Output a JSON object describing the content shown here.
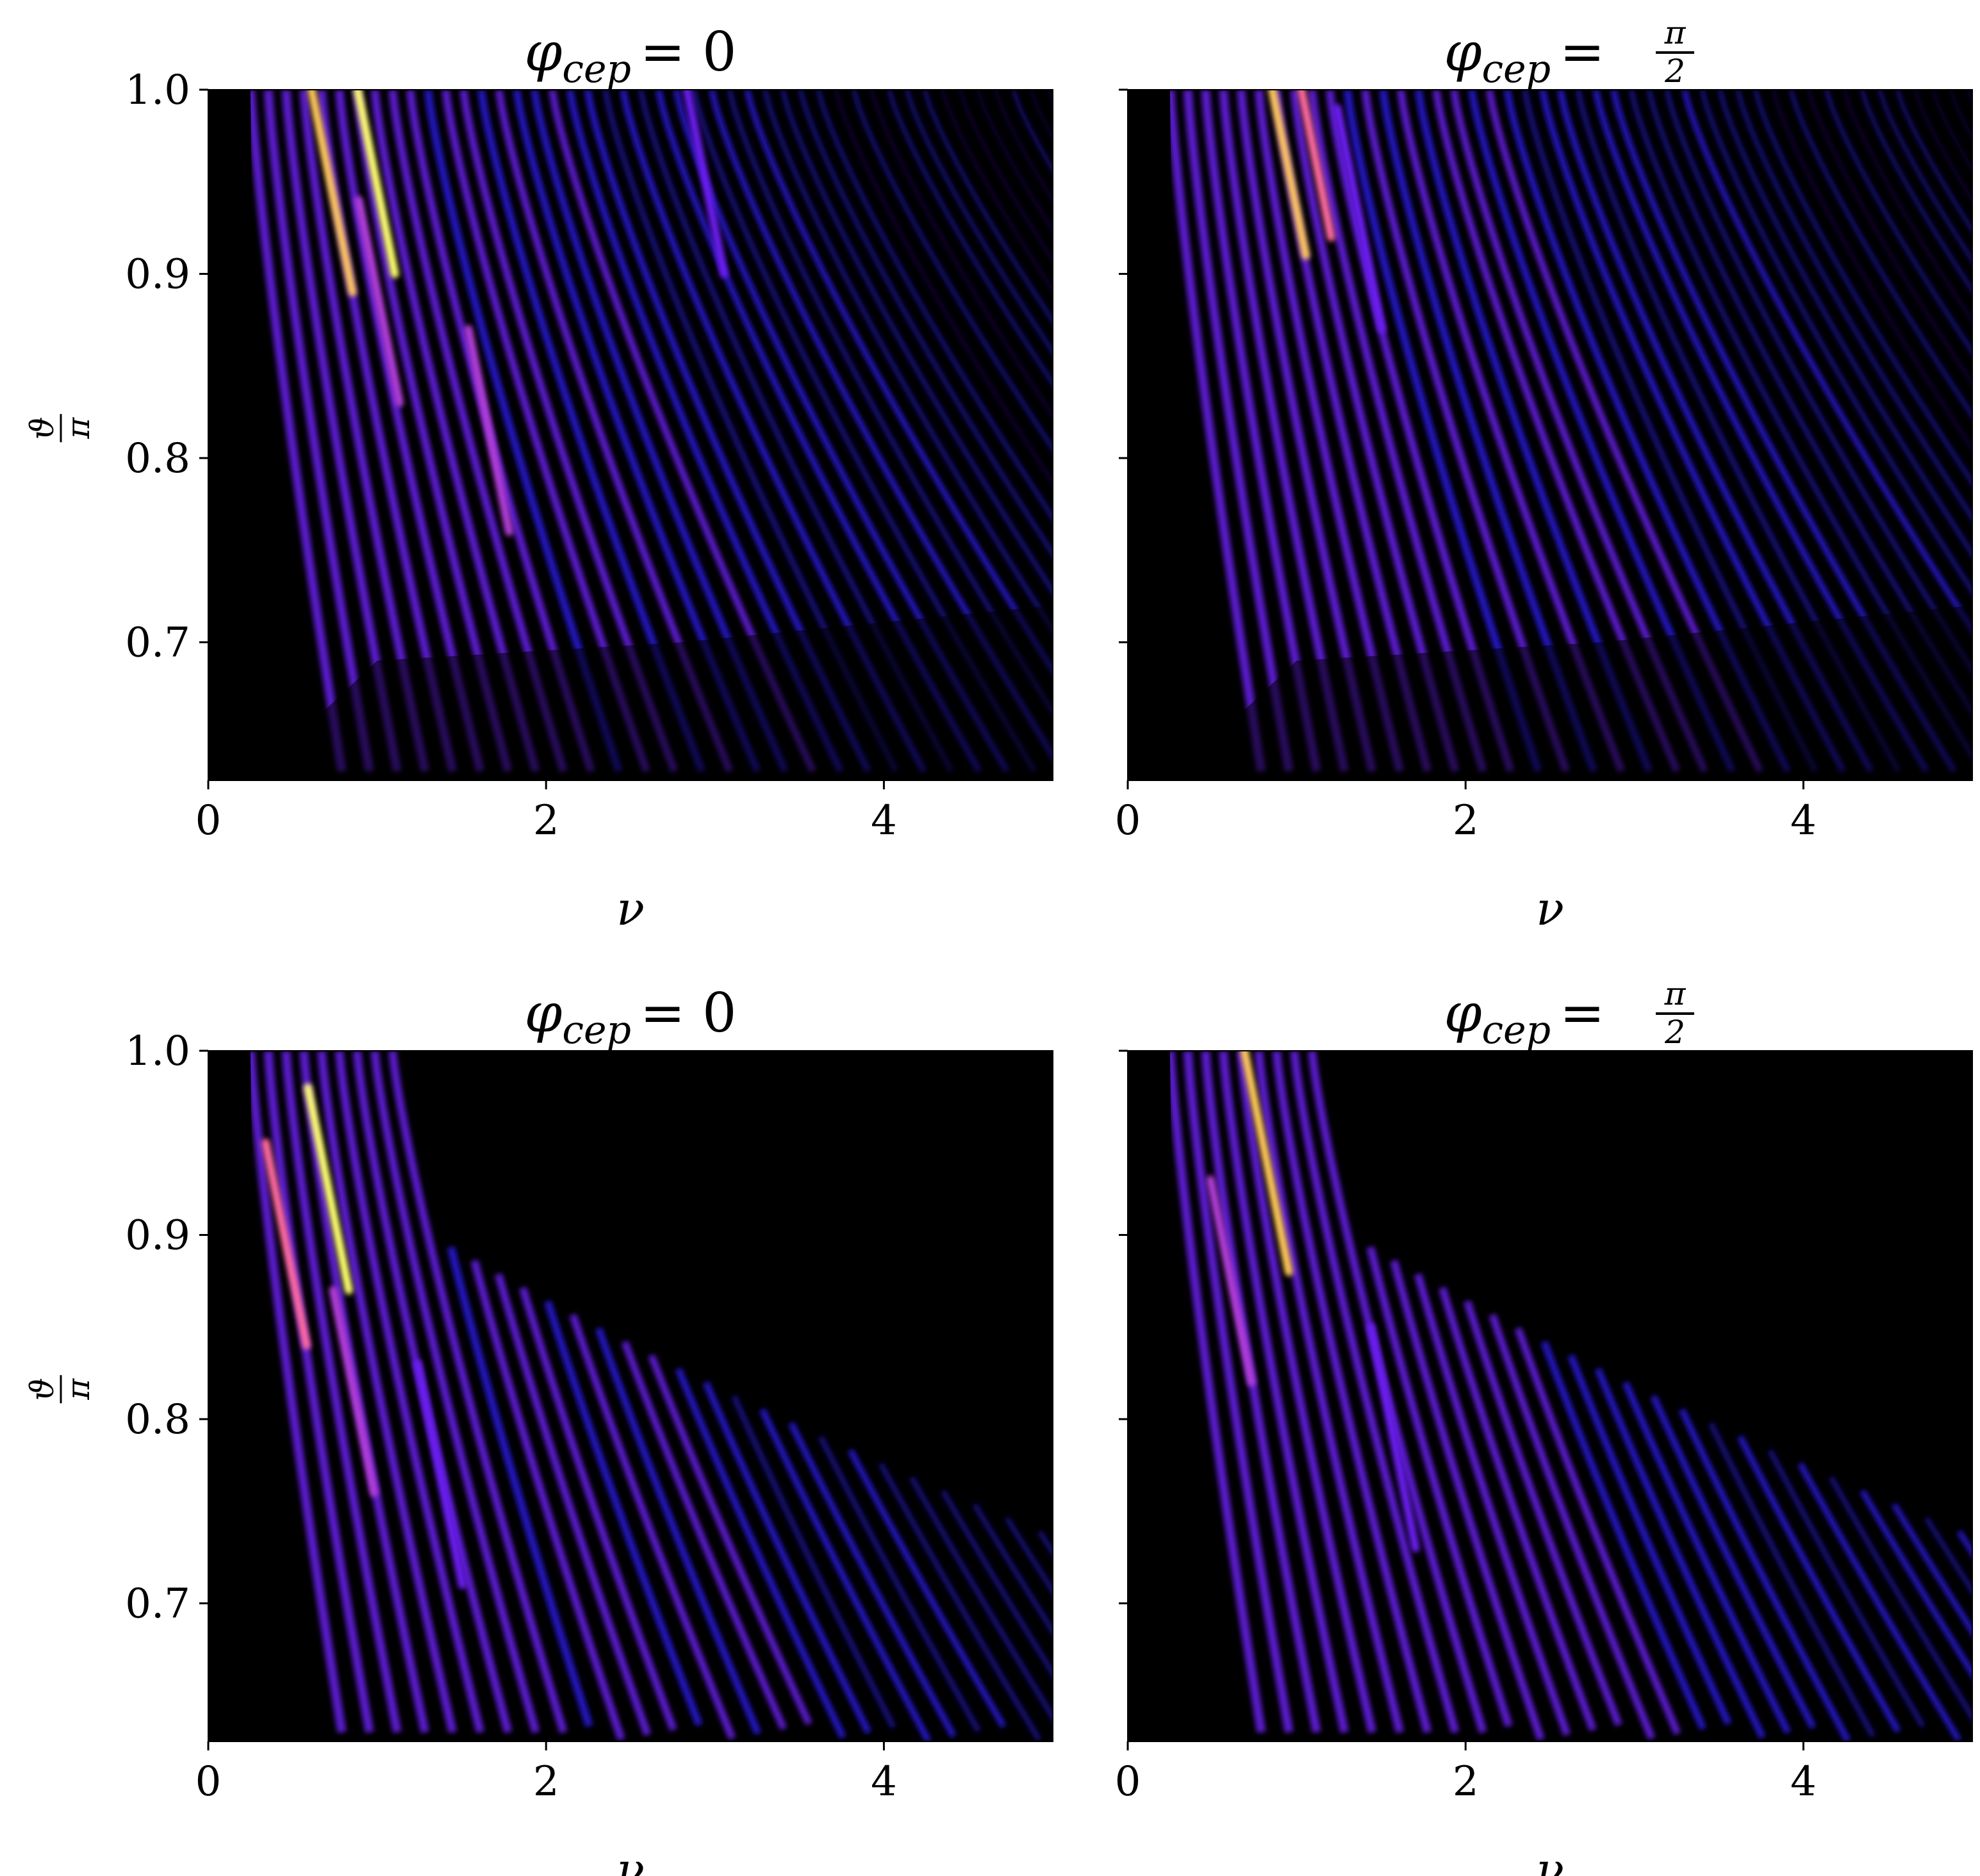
{
  "chart_data": [
    {
      "type": "heatmap",
      "panel": "top-left",
      "title": {
        "symbol": "φ",
        "subscript": "cep",
        "relation": "=",
        "value": "0"
      },
      "xlabel": "ν",
      "ylabel": {
        "numerator": "ϑ",
        "denominator": "π"
      },
      "xlim": [
        0,
        5
      ],
      "ylim": [
        0.625,
        1.0
      ],
      "xticks": [
        0,
        2,
        4
      ],
      "xtick_labels": [
        "0",
        "2",
        "4"
      ],
      "yticks": [
        0.7,
        0.8,
        0.9,
        1.0
      ],
      "ytick_labels": [
        "0.7",
        "0.8",
        "0.9",
        "1.0"
      ],
      "colormap": [
        "#000000",
        "#0a0030",
        "#1a0a80",
        "#2a1ae0",
        "#6a1cf0",
        "#b23cd8",
        "#ff6aa0",
        "#ffc85a",
        "#ffff70"
      ],
      "hotspots": [
        {
          "nu": 0.7,
          "theta": 0.96,
          "intensity": 0.9
        },
        {
          "nu": 0.95,
          "theta": 0.97,
          "intensity": 1.0
        },
        {
          "nu": 1.0,
          "theta": 0.89,
          "intensity": 0.65
        },
        {
          "nu": 1.65,
          "theta": 0.82,
          "intensity": 0.6
        },
        {
          "nu": 2.9,
          "theta": 0.97,
          "intensity": 0.45
        }
      ]
    },
    {
      "type": "heatmap",
      "panel": "top-right",
      "title": {
        "symbol": "φ",
        "subscript": "cep",
        "relation": "=",
        "value_num": "π",
        "value_den": "2"
      },
      "xlabel": "ν",
      "xlim": [
        0,
        5
      ],
      "ylim": [
        0.625,
        1.0
      ],
      "xticks": [
        0,
        2,
        4
      ],
      "xtick_labels": [
        "0",
        "2",
        "4"
      ],
      "yticks": [
        0.7,
        0.8,
        0.9,
        1.0
      ],
      "hotspots": [
        {
          "nu": 0.9,
          "theta": 0.98,
          "intensity": 0.85
        },
        {
          "nu": 1.05,
          "theta": 0.99,
          "intensity": 0.7
        },
        {
          "nu": 1.35,
          "theta": 0.94,
          "intensity": 0.5
        }
      ]
    },
    {
      "type": "heatmap",
      "panel": "bottom-left",
      "title": {
        "symbol": "φ",
        "subscript": "cep",
        "relation": "=",
        "value": "0"
      },
      "xlabel": "ν",
      "ylabel": {
        "numerator": "ϑ",
        "denominator": "π"
      },
      "xlim": [
        0,
        5
      ],
      "ylim": [
        0.625,
        1.0
      ],
      "xticks": [
        0,
        2,
        4
      ],
      "xtick_labels": [
        "0",
        "2",
        "4"
      ],
      "yticks": [
        0.7,
        0.8,
        0.9,
        1.0
      ],
      "ytick_labels": [
        "0.7",
        "0.8",
        "0.9",
        "1.0"
      ],
      "hotspots": [
        {
          "nu": 0.7,
          "theta": 0.93,
          "intensity": 1.0
        },
        {
          "nu": 0.45,
          "theta": 0.9,
          "intensity": 0.8
        },
        {
          "nu": 0.85,
          "theta": 0.82,
          "intensity": 0.6
        },
        {
          "nu": 1.35,
          "theta": 0.78,
          "intensity": 0.5
        }
      ]
    },
    {
      "type": "heatmap",
      "panel": "bottom-right",
      "title": {
        "symbol": "φ",
        "subscript": "cep",
        "relation": "=",
        "value_num": "π",
        "value_den": "2"
      },
      "xlabel": "ν",
      "xlim": [
        0,
        5
      ],
      "ylim": [
        0.625,
        1.0
      ],
      "xticks": [
        0,
        2,
        4
      ],
      "xtick_labels": [
        "0",
        "2",
        "4"
      ],
      "yticks": [
        0.7,
        0.8,
        0.9,
        1.0
      ],
      "hotspots": [
        {
          "nu": 0.8,
          "theta": 0.95,
          "intensity": 0.85
        },
        {
          "nu": 0.6,
          "theta": 0.88,
          "intensity": 0.6
        },
        {
          "nu": 1.55,
          "theta": 0.8,
          "intensity": 0.45
        }
      ]
    }
  ]
}
